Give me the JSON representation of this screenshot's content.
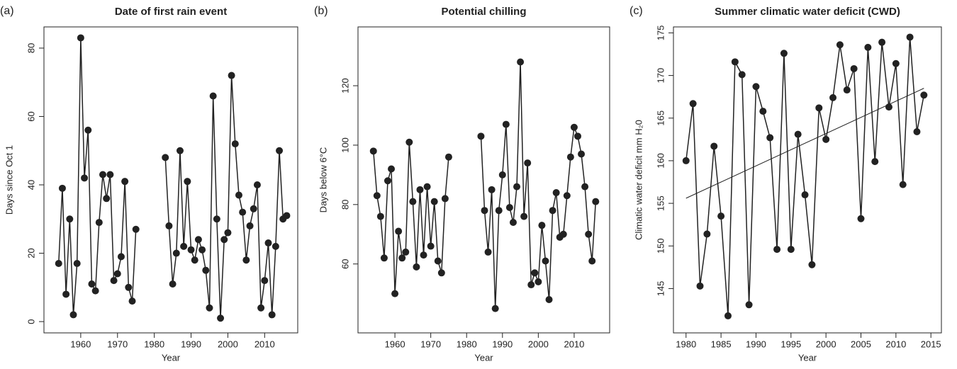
{
  "chart_data": [
    {
      "type": "line",
      "label": "(a)",
      "title": "Date of first rain event",
      "x_label": "Year",
      "y_label": "Days since Oct 1",
      "xlim": [
        1950,
        2019
      ],
      "ylim": [
        -3.3,
        86.2
      ],
      "xticks": [
        1960,
        1970,
        1980,
        1990,
        2000,
        2010
      ],
      "yticks": [
        0,
        20,
        40,
        60,
        80
      ],
      "series": [
        {
          "color": "#222222",
          "x": [
            1954,
            1955,
            1956,
            1957,
            1958,
            1959,
            1960,
            1961,
            1962,
            1963,
            1964,
            1965,
            1966,
            1967,
            1968,
            1969,
            1970,
            1971,
            1972,
            1973,
            1974,
            1975,
            1976,
            1977,
            1978,
            1979,
            1980,
            1981,
            1982,
            1983,
            1984,
            1985,
            1986,
            1987,
            1988,
            1989,
            1990,
            1991,
            1992,
            1993,
            1994,
            1995,
            1996,
            1997,
            1998,
            1999,
            2000,
            2001,
            2002,
            2003,
            2004,
            2005,
            2006,
            2007,
            2008,
            2009,
            2010,
            2011,
            2012,
            2013,
            2014,
            2015,
            2016
          ],
          "values": [
            17,
            39,
            8,
            30,
            2,
            17,
            83,
            42,
            56,
            11,
            9,
            29,
            43,
            36,
            43,
            12,
            14,
            19,
            41,
            10,
            6,
            27,
            null,
            null,
            null,
            null,
            null,
            null,
            null,
            48,
            28,
            11,
            20,
            50,
            22,
            41,
            21,
            18,
            24,
            21,
            15,
            4,
            66,
            30,
            1,
            24,
            26,
            72,
            52,
            37,
            32,
            18,
            28,
            33,
            40,
            4,
            12,
            23,
            2,
            22,
            50,
            30,
            31
          ]
        }
      ]
    },
    {
      "type": "line",
      "label": "(b)",
      "title": "Potential chilling",
      "x_label": "Year",
      "y_label": "Days below 6°C",
      "xlim": [
        1949.7,
        2019.9
      ],
      "ylim": [
        36.8,
        139.8
      ],
      "xticks": [
        1960,
        1970,
        1980,
        1990,
        2000,
        2010
      ],
      "yticks": [
        60,
        80,
        100,
        120
      ],
      "series": [
        {
          "color": "#222222",
          "x": [
            1954,
            1955,
            1956,
            1957,
            1958,
            1959,
            1960,
            1961,
            1962,
            1963,
            1964,
            1965,
            1966,
            1967,
            1968,
            1969,
            1970,
            1971,
            1972,
            1973,
            1974,
            1975,
            1976,
            1977,
            1978,
            1979,
            1980,
            1981,
            1982,
            1983,
            1984,
            1985,
            1986,
            1987,
            1988,
            1989,
            1990,
            1991,
            1992,
            1993,
            1994,
            1995,
            1996,
            1997,
            1998,
            1999,
            2000,
            2001,
            2002,
            2003,
            2004,
            2005,
            2006,
            2007,
            2008,
            2009,
            2010,
            2011,
            2012,
            2013,
            2014,
            2015,
            2016
          ],
          "values": [
            98,
            83,
            76,
            62,
            88,
            92,
            50,
            71,
            62,
            64,
            101,
            81,
            59,
            85,
            63,
            86,
            66,
            81,
            61,
            57,
            82,
            96,
            null,
            null,
            null,
            null,
            null,
            null,
            null,
            null,
            103,
            78,
            64,
            85,
            45,
            78,
            90,
            107,
            79,
            74,
            86,
            128,
            76,
            94,
            53,
            57,
            54,
            73,
            61,
            48,
            78,
            84,
            69,
            70,
            83,
            96,
            106,
            103,
            97,
            86,
            70,
            61,
            81
          ]
        }
      ]
    },
    {
      "type": "line",
      "label": "(c)",
      "title": "Summer climatic water deficit (CWD)",
      "x_label": "Year",
      "y_label": "Climatic water deficit mm H₂0",
      "xlim": [
        1978.2,
        2016.5
      ],
      "ylim": [
        139.8,
        175.7
      ],
      "xticks": [
        1980,
        1985,
        1990,
        1995,
        2000,
        2005,
        2010,
        2015
      ],
      "yticks": [
        145,
        150,
        155,
        160,
        165,
        170,
        175
      ],
      "series": [
        {
          "color": "#222222",
          "x": [
            1980,
            1981,
            1982,
            1983,
            1984,
            1985,
            1986,
            1987,
            1988,
            1989,
            1990,
            1991,
            1992,
            1993,
            1994,
            1995,
            1996,
            1997,
            1998,
            1999,
            2000,
            2001,
            2002,
            2003,
            2004,
            2005,
            2006,
            2007,
            2008,
            2009,
            2010,
            2011,
            2012,
            2013,
            2014
          ],
          "values": [
            160,
            166.7,
            145.3,
            151.4,
            161.7,
            153.5,
            141.8,
            171.6,
            170.1,
            143.1,
            168.7,
            165.8,
            162.7,
            149.6,
            172.6,
            149.6,
            163.1,
            156,
            147.8,
            166.2,
            162.5,
            167.4,
            173.6,
            168.3,
            170.8,
            153.2,
            173.3,
            159.9,
            173.9,
            166.3,
            171.4,
            157.2,
            174.5,
            163.4,
            167.7
          ]
        }
      ],
      "trend": {
        "x": [
          1980,
          2014
        ],
        "values": [
          155.6,
          168.5
        ]
      }
    }
  ]
}
